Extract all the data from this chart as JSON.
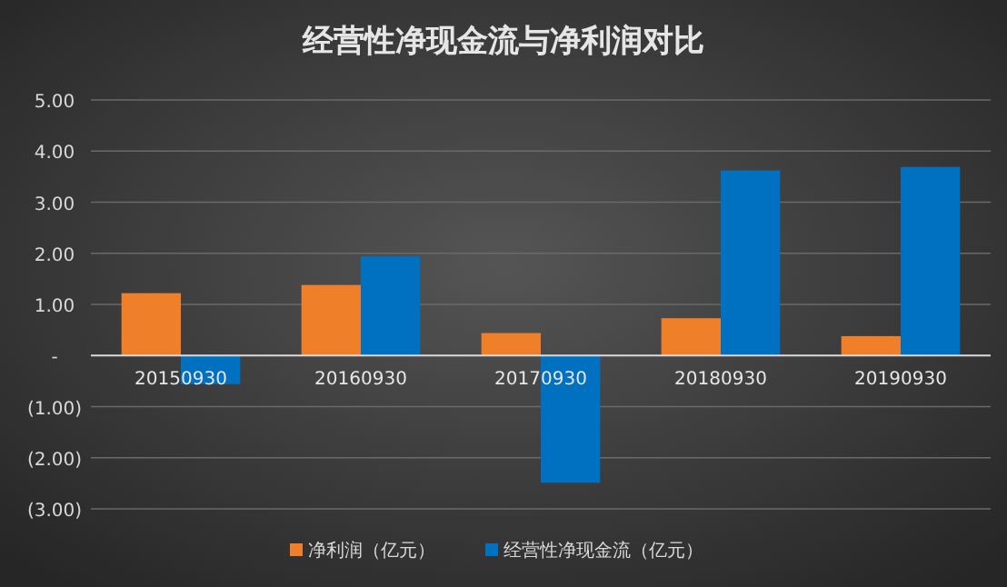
{
  "chart_data": {
    "type": "bar",
    "title": "经营性净现金流与净利润对比",
    "categories": [
      "20150930",
      "20160930",
      "20170930",
      "20180930",
      "20190930"
    ],
    "series": [
      {
        "name": "净利润（亿元）",
        "color": "#f07f2a",
        "values": [
          1.22,
          1.38,
          0.44,
          0.73,
          0.38
        ]
      },
      {
        "name": "经营性净现金流（亿元）",
        "color": "#0070c0",
        "values": [
          -0.56,
          1.94,
          -2.49,
          3.62,
          3.69
        ]
      }
    ],
    "ylim": [
      -3,
      5
    ],
    "yticks": [
      {
        "value": -3,
        "label": "(3.00)"
      },
      {
        "value": -2,
        "label": "(2.00)"
      },
      {
        "value": -1,
        "label": "(1.00)"
      },
      {
        "value": 0,
        "label": "-"
      },
      {
        "value": 1,
        "label": "1.00"
      },
      {
        "value": 2,
        "label": "2.00"
      },
      {
        "value": 3,
        "label": "3.00"
      },
      {
        "value": 4,
        "label": "4.00"
      },
      {
        "value": 5,
        "label": "5.00"
      }
    ],
    "grid": "y",
    "legend": "bottom"
  }
}
